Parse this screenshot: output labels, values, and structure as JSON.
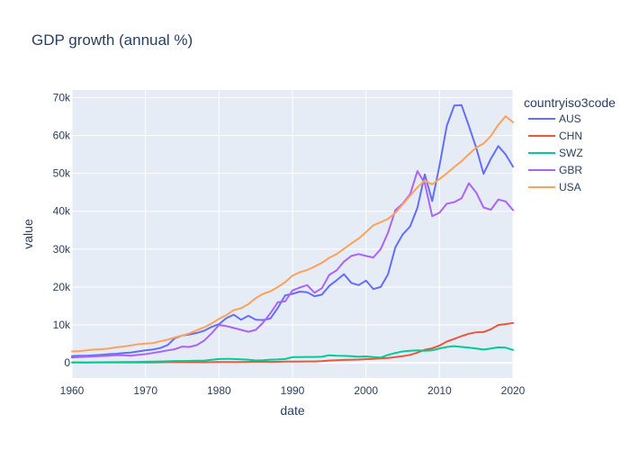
{
  "chart_data": {
    "type": "line",
    "title": "GDP growth (annual %)",
    "xlabel": "date",
    "ylabel": "value",
    "legend_title": "countryiso3code",
    "legend_position": "right",
    "grid": true,
    "xlim": [
      1960,
      2020
    ],
    "ylim": [
      -4000,
      72000
    ],
    "x_ticks": [
      1960,
      1970,
      1980,
      1990,
      2000,
      2010,
      2020
    ],
    "y_ticks": [
      {
        "value": 0,
        "label": "0"
      },
      {
        "value": 10000,
        "label": "10k"
      },
      {
        "value": 20000,
        "label": "20k"
      },
      {
        "value": 30000,
        "label": "30k"
      },
      {
        "value": 40000,
        "label": "40k"
      },
      {
        "value": 50000,
        "label": "50k"
      },
      {
        "value": 60000,
        "label": "60k"
      },
      {
        "value": 70000,
        "label": "70k"
      }
    ],
    "x": [
      1960,
      1961,
      1962,
      1963,
      1964,
      1965,
      1966,
      1967,
      1968,
      1969,
      1970,
      1971,
      1972,
      1973,
      1974,
      1975,
      1976,
      1977,
      1978,
      1979,
      1980,
      1981,
      1982,
      1983,
      1984,
      1985,
      1986,
      1987,
      1988,
      1989,
      1990,
      1991,
      1992,
      1993,
      1994,
      1995,
      1996,
      1997,
      1998,
      1999,
      2000,
      2001,
      2002,
      2003,
      2004,
      2005,
      2006,
      2007,
      2008,
      2009,
      2010,
      2011,
      2012,
      2013,
      2014,
      2015,
      2016,
      2017,
      2018,
      2019,
      2020
    ],
    "series": [
      {
        "name": "AUS",
        "color": "#636efa",
        "values": [
          1800,
          1900,
          1900,
          2000,
          2100,
          2300,
          2400,
          2600,
          2700,
          3000,
          3300,
          3500,
          3900,
          4700,
          6500,
          7200,
          7500,
          7900,
          8500,
          9500,
          10200,
          11800,
          12700,
          11400,
          12400,
          11400,
          11300,
          11700,
          14500,
          17800,
          18200,
          18800,
          18600,
          17600,
          18000,
          20300,
          21800,
          23400,
          21100,
          20500,
          21700,
          19500,
          20000,
          23400,
          30500,
          33900,
          36000,
          40900,
          49700,
          42700,
          52000,
          62600,
          67900,
          68000,
          62500,
          56700,
          49900,
          53900,
          57200,
          55000,
          51800
        ]
      },
      {
        "name": "CHN",
        "color": "#ef553b",
        "values": [
          90,
          75,
          70,
          75,
          85,
          98,
          104,
          97,
          91,
          100,
          113,
          118,
          132,
          157,
          160,
          178,
          165,
          185,
          156,
          183,
          195,
          197,
          203,
          225,
          250,
          294,
          281,
          252,
          284,
          311,
          318,
          333,
          366,
          377,
          473,
          610,
          709,
          781,
          828,
          873,
          959,
          1053,
          1149,
          1289,
          1509,
          1753,
          2099,
          2694,
          3468,
          3832,
          4550,
          5618,
          6316,
          7051,
          7679,
          8067,
          8148,
          8879,
          9977,
          10217,
          10500
        ]
      },
      {
        "name": "SWZ",
        "color": "#00cc96",
        "values": [
          100,
          110,
          120,
          130,
          150,
          170,
          190,
          210,
          230,
          260,
          290,
          320,
          360,
          420,
          480,
          500,
          520,
          560,
          600,
          800,
          1000,
          1050,
          1000,
          950,
          850,
          620,
          700,
          850,
          900,
          1000,
          1500,
          1500,
          1550,
          1550,
          1600,
          2000,
          1900,
          1850,
          1750,
          1600,
          1700,
          1500,
          1400,
          2100,
          2600,
          3000,
          3200,
          3300,
          3200,
          3300,
          3800,
          4200,
          4400,
          4200,
          4000,
          3800,
          3500,
          3800,
          4100,
          4000,
          3400
        ]
      },
      {
        "name": "GBR",
        "color": "#ab63fa",
        "values": [
          1400,
          1500,
          1600,
          1700,
          1800,
          1900,
          2000,
          2000,
          1900,
          2100,
          2300,
          2600,
          2900,
          3300,
          3600,
          4300,
          4200,
          4700,
          5900,
          7800,
          10000,
          9700,
          9200,
          8700,
          8200,
          8700,
          10600,
          13100,
          16000,
          16200,
          19100,
          19900,
          20500,
          18500,
          19700,
          23200,
          24400,
          26700,
          28200,
          28700,
          28200,
          27800,
          30000,
          34400,
          40300,
          42000,
          44500,
          50600,
          47400,
          38700,
          39600,
          42000,
          42400,
          43400,
          47400,
          44900,
          41000,
          40400,
          43100,
          42600,
          40300
        ]
      },
      {
        "name": "USA",
        "color": "#ffa15a",
        "values": [
          3000,
          3100,
          3300,
          3500,
          3600,
          3800,
          4100,
          4300,
          4600,
          4900,
          5100,
          5200,
          5700,
          6100,
          6700,
          7200,
          7800,
          8600,
          9400,
          10400,
          11600,
          12600,
          13900,
          14400,
          15500,
          17100,
          18200,
          18900,
          20000,
          21300,
          23000,
          23900,
          24500,
          25400,
          26400,
          27700,
          28700,
          30100,
          31500,
          32800,
          34500,
          36300,
          37100,
          38000,
          39600,
          41800,
          44100,
          46300,
          48100,
          47100,
          48500,
          50000,
          51700,
          53200,
          55100,
          56800,
          57900,
          59900,
          62800,
          65100,
          63500
        ]
      }
    ]
  }
}
